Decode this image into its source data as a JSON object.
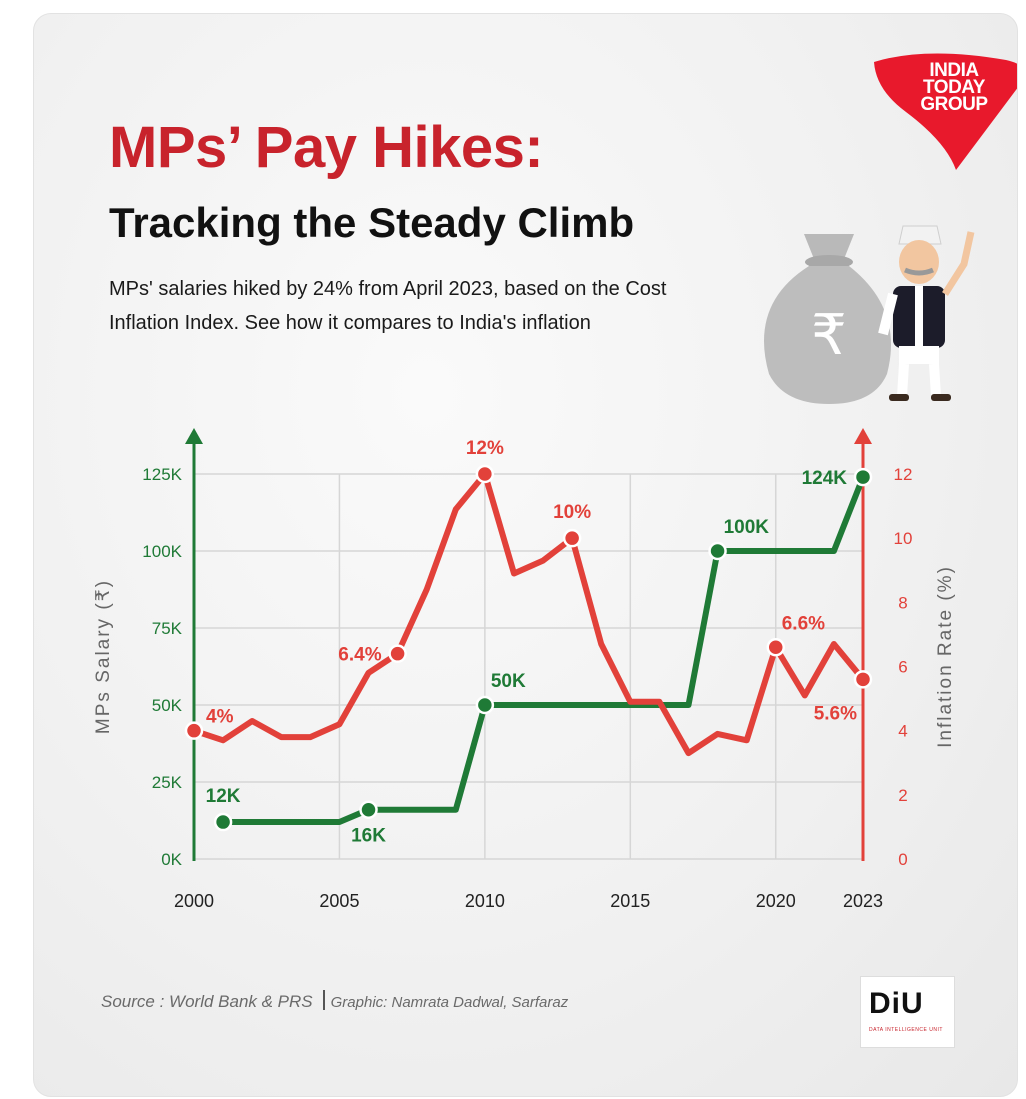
{
  "header": {
    "title": "MPs’ Pay Hikes:",
    "subtitle": "Tracking the Steady Climb",
    "description": "MPs' salaries hiked by 24% from April 2023, based on the Cost Inflation Index. See how it compares to India's inflation"
  },
  "branding": {
    "logo_line1": "INDIA",
    "logo_line2": "TODAY",
    "logo_line3": "GROUP",
    "diu_mark": "DiU",
    "diu_sub": "DATA INTELLIGENCE UNIT"
  },
  "footer": {
    "source": "Source : World Bank & PRS",
    "credit": "Graphic: Namrata Dadwal, Sarfaraz"
  },
  "colors": {
    "salary": "#1f7a36",
    "inflation": "#e2413a",
    "title_red": "#c8232c",
    "grid": "#d6d6d6"
  },
  "chart_data": {
    "type": "line",
    "xlabel": "",
    "x_ticks": [
      "2000",
      "2005",
      "2010",
      "2015",
      "2020",
      "2023"
    ],
    "xlim": [
      2000,
      2023
    ],
    "y_left": {
      "label": "MPs Salary (₹)",
      "ticks": [
        "0K",
        "25K",
        "50K",
        "75K",
        "100K",
        "125K"
      ],
      "range": [
        0,
        125000
      ]
    },
    "y_right": {
      "label": "Inflation Rate (%)",
      "ticks": [
        "0",
        "2",
        "4",
        "6",
        "8",
        "10",
        "12"
      ],
      "range": [
        0,
        12
      ]
    },
    "grid": true,
    "series": [
      {
        "name": "MPs Salary",
        "axis": "left",
        "color": "#1f7a36",
        "step": true,
        "points": [
          [
            2001,
            12000
          ],
          [
            2005,
            12000
          ],
          [
            2006,
            16000
          ],
          [
            2009,
            16000
          ],
          [
            2010,
            50000
          ],
          [
            2017,
            50000
          ],
          [
            2018,
            100000
          ],
          [
            2022,
            100000
          ],
          [
            2023,
            124000
          ]
        ],
        "markers": [
          [
            2001,
            12000
          ],
          [
            2006,
            16000
          ],
          [
            2010,
            50000
          ],
          [
            2018,
            100000
          ],
          [
            2023,
            124000
          ]
        ],
        "labels": [
          {
            "text": "12K",
            "x": 2001,
            "y": 12000,
            "pos": "above"
          },
          {
            "text": "16K",
            "x": 2006,
            "y": 16000,
            "pos": "below"
          },
          {
            "text": "50K",
            "x": 2010,
            "y": 50000,
            "pos": "above-right"
          },
          {
            "text": "100K",
            "x": 2018,
            "y": 100000,
            "pos": "above-right"
          },
          {
            "text": "124K",
            "x": 2023,
            "y": 124000,
            "pos": "left"
          }
        ]
      },
      {
        "name": "Inflation Rate",
        "axis": "right",
        "color": "#e2413a",
        "points": [
          [
            2000,
            4.0
          ],
          [
            2001,
            3.7
          ],
          [
            2002,
            4.3
          ],
          [
            2003,
            3.8
          ],
          [
            2004,
            3.8
          ],
          [
            2005,
            4.2
          ],
          [
            2006,
            5.8
          ],
          [
            2007,
            6.4
          ],
          [
            2008,
            8.4
          ],
          [
            2009,
            10.9
          ],
          [
            2010,
            12.0
          ],
          [
            2011,
            8.9
          ],
          [
            2012,
            9.3
          ],
          [
            2013,
            10.0
          ],
          [
            2014,
            6.7
          ],
          [
            2015,
            4.9
          ],
          [
            2016,
            4.9
          ],
          [
            2017,
            3.3
          ],
          [
            2018,
            3.9
          ],
          [
            2019,
            3.7
          ],
          [
            2020,
            6.6
          ],
          [
            2021,
            5.1
          ],
          [
            2022,
            6.7
          ],
          [
            2023,
            5.6
          ]
        ],
        "markers": [
          [
            2000,
            4.0
          ],
          [
            2007,
            6.4
          ],
          [
            2010,
            12.0
          ],
          [
            2013,
            10.0
          ],
          [
            2020,
            6.6
          ],
          [
            2023,
            5.6
          ]
        ],
        "labels": [
          {
            "text": "4%",
            "x": 2000,
            "y": 4.0,
            "pos": "right-up"
          },
          {
            "text": "6.4%",
            "x": 2007,
            "y": 6.4,
            "pos": "left"
          },
          {
            "text": "12%",
            "x": 2010,
            "y": 12.0,
            "pos": "above"
          },
          {
            "text": "10%",
            "x": 2013,
            "y": 10.0,
            "pos": "above"
          },
          {
            "text": "6.6%",
            "x": 2020,
            "y": 6.6,
            "pos": "above-right"
          },
          {
            "text": "5.6%",
            "x": 2023,
            "y": 5.6,
            "pos": "below-left"
          }
        ]
      }
    ]
  }
}
